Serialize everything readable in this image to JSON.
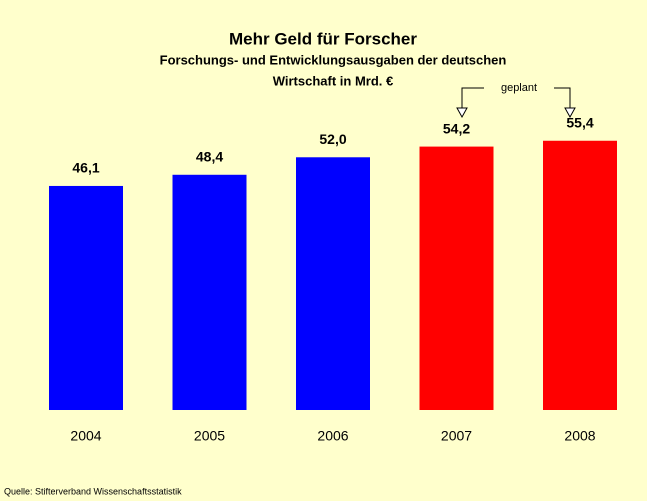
{
  "chart_data": {
    "type": "bar",
    "title": "Mehr Geld für Forscher",
    "subtitle": [
      "Forschungs- und Entwicklungsausgaben der deutschen",
      "Wirtschaft in Mrd. €"
    ],
    "categories": [
      "2004",
      "2005",
      "2006",
      "2007",
      "2008"
    ],
    "values": [
      46.1,
      48.4,
      52.0,
      54.2,
      55.4
    ],
    "value_labels": [
      "46,1",
      "48,4",
      "52,0",
      "54,2",
      "55,4"
    ],
    "colors": [
      "#0000ff",
      "#0000ff",
      "#0000ff",
      "#ff0000",
      "#ff0000"
    ],
    "annotation": "geplant",
    "source": "Quelle: Stifterverband Wissenschaftsstatistik"
  }
}
